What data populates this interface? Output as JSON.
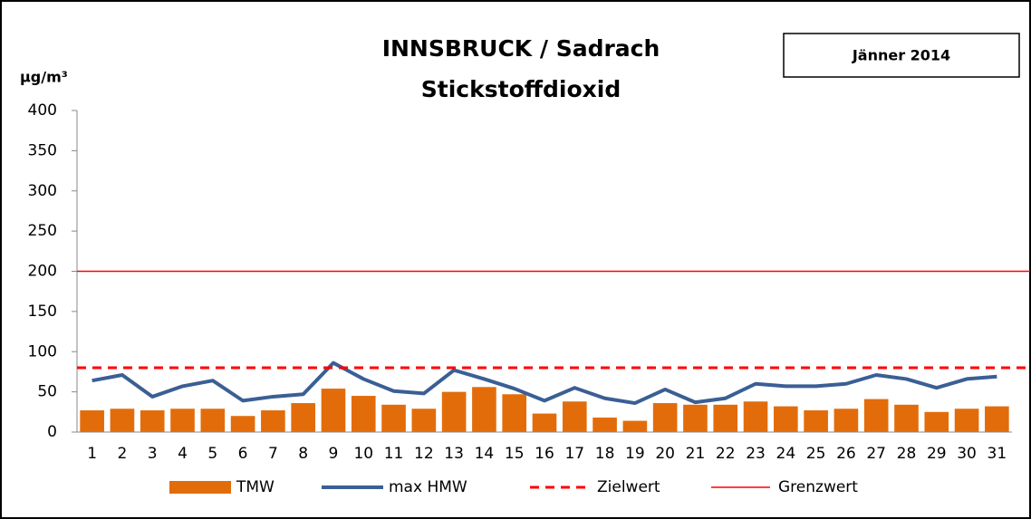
{
  "chart_data": {
    "type": "bar_line",
    "title": "INNSBRUCK / Sadrach",
    "subtitle": "Stickstoffdioxid",
    "period": "Jänner 2014",
    "y_label": "µg/m³",
    "categories": [
      "1",
      "2",
      "3",
      "4",
      "5",
      "6",
      "7",
      "8",
      "9",
      "10",
      "11",
      "12",
      "13",
      "14",
      "15",
      "16",
      "17",
      "18",
      "19",
      "20",
      "21",
      "22",
      "23",
      "24",
      "25",
      "26",
      "27",
      "28",
      "29",
      "30",
      "31"
    ],
    "series": [
      {
        "name": "TMW",
        "type": "bar",
        "color": "#e36c0a",
        "values": [
          27,
          29,
          27,
          29,
          29,
          20,
          27,
          36,
          54,
          45,
          34,
          29,
          50,
          56,
          47,
          23,
          38,
          18,
          14,
          36,
          34,
          34,
          38,
          32,
          27,
          29,
          41,
          34,
          25,
          29,
          32
        ]
      },
      {
        "name": "max HMW",
        "type": "line",
        "color": "#3a5f95",
        "values": [
          64,
          71,
          44,
          57,
          64,
          39,
          44,
          47,
          86,
          66,
          51,
          48,
          77,
          66,
          54,
          39,
          55,
          42,
          36,
          53,
          37,
          42,
          60,
          57,
          57,
          60,
          71,
          66,
          55,
          66,
          69
        ]
      }
    ],
    "reference_lines": [
      {
        "name": "Zielwert",
        "value": 80,
        "color": "#ff0000",
        "style": "dashed"
      },
      {
        "name": "Grenzwert",
        "value": 200,
        "color": "#ff0000",
        "style": "solid"
      }
    ],
    "ylim": [
      0,
      400
    ],
    "yticks": [
      0,
      50,
      100,
      150,
      200,
      250,
      300,
      350,
      400
    ],
    "grid": false
  }
}
